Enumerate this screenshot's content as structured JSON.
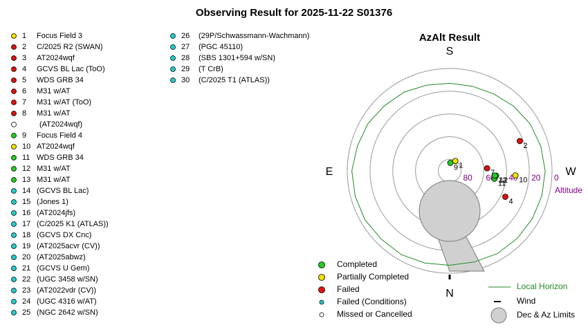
{
  "title": "Observing Result for 2025-11-22 S01376",
  "targets": [
    {
      "number": "1",
      "name": "Focus Field 3",
      "color": "#f0e000"
    },
    {
      "number": "2",
      "name": "C/2025 R2 (SWAN)",
      "color": "#dd1111"
    },
    {
      "number": "3",
      "name": "AT2024wqf",
      "color": "#dd1111"
    },
    {
      "number": "4",
      "name": "GCVS BL Lac (ToO)",
      "color": "#dd1111"
    },
    {
      "number": "5",
      "name": "WDS GRB 34",
      "color": "#dd1111"
    },
    {
      "number": "6",
      "name": "M31 w/AT",
      "color": "#dd1111"
    },
    {
      "number": "7",
      "name": "M31 w/AT (ToO)",
      "color": "#dd1111"
    },
    {
      "number": "8",
      "name": "M31 w/AT",
      "color": "#dd1111"
    },
    {
      "number": null,
      "name": "(AT2024wqf)",
      "color": "#ffffff"
    },
    {
      "number": "9",
      "name": "Focus Field 4",
      "color": "#22cc22"
    },
    {
      "number": "10",
      "name": "AT2024wqf",
      "color": "#f0e000"
    },
    {
      "number": "11",
      "name": "WDS GRB 34",
      "color": "#22cc22"
    },
    {
      "number": "12",
      "name": "M31 w/AT",
      "color": "#22cc22"
    },
    {
      "number": "13",
      "name": "M31 w/AT",
      "color": "#22cc22"
    },
    {
      "number": "14",
      "name": "(GCVS BL Lac)",
      "color": "#22cccc"
    },
    {
      "number": "15",
      "name": "(Jones 1)",
      "color": "#22cccc"
    },
    {
      "number": "16",
      "name": "(AT2024jfs)",
      "color": "#22cccc"
    },
    {
      "number": "17",
      "name": "(C/2025 K1 (ATLAS))",
      "color": "#22cccc"
    },
    {
      "number": "18",
      "name": "(GCVS DX Cnc)",
      "color": "#22cccc"
    },
    {
      "number": "19",
      "name": "(AT2025acvr (CV))",
      "color": "#22cccc"
    },
    {
      "number": "20",
      "name": "(AT2025abwz)",
      "color": "#22cccc"
    },
    {
      "number": "21",
      "name": "(GCVS U Gem)",
      "color": "#22cccc"
    },
    {
      "number": "22",
      "name": "(UGC 3458 w/SN)",
      "color": "#22cccc"
    },
    {
      "number": "23",
      "name": "(AT2022vdr (CV))",
      "color": "#22cccc"
    },
    {
      "number": "24",
      "name": "(UGC 4316 w/AT)",
      "color": "#22cccc"
    },
    {
      "number": "25",
      "name": "(NGC 2642 w/SN)",
      "color": "#22cccc"
    },
    {
      "number": "26",
      "name": "(29P/Schwassmann-Wachmann)",
      "color": "#22cccc"
    },
    {
      "number": "27",
      "name": "(PGC 45110)",
      "color": "#22cccc"
    },
    {
      "number": "28",
      "name": "(SBS 1301+594 w/SN)",
      "color": "#22cccc"
    },
    {
      "number": "29",
      "name": "(T CrB)",
      "color": "#22cccc"
    },
    {
      "number": "30",
      "name": "(C/2025 T1 (ATLAS))",
      "color": "#22cccc"
    }
  ],
  "chart_data": {
    "type": "polar",
    "title": "AzAlt Result",
    "compass": {
      "S": "S",
      "N": "N",
      "E": "E",
      "W": "W"
    },
    "radial_label": "Altitude",
    "rlim": [
      90,
      0
    ],
    "rticks": [
      80,
      60,
      40,
      20,
      0
    ],
    "points": [
      {
        "label": "2",
        "az": 247,
        "alt": 23,
        "color": "#dd1111"
      },
      {
        "label": "4",
        "az": 295,
        "alt": 36,
        "color": "#dd1111"
      },
      {
        "label": "7",
        "az": 266,
        "alt": 57,
        "color": "#dd1111"
      },
      {
        "label": "9",
        "az": 185,
        "alt": 83,
        "color": "#22cc22"
      },
      {
        "label": "1",
        "az": 210,
        "alt": 80,
        "color": "#f0e000"
      },
      {
        "label": "10",
        "az": 274,
        "alt": 32,
        "color": "#f0e000"
      },
      {
        "label": "11",
        "az": 280,
        "alt": 50,
        "color": "#22cc22"
      },
      {
        "label": "12",
        "az": 276,
        "alt": 49,
        "color": "#22cc22"
      },
      {
        "label": "13",
        "az": 276,
        "alt": 50,
        "color": "#22cc22"
      }
    ],
    "horizon": {
      "name": "Local Horizon",
      "color": "#228822",
      "az": [
        0,
        15,
        30,
        45,
        60,
        75,
        90,
        105,
        120,
        135,
        150,
        165,
        180,
        195,
        210,
        225,
        240,
        255,
        270,
        285,
        300,
        315,
        330,
        345
      ],
      "alt": [
        7,
        6,
        5,
        5,
        4,
        4,
        4,
        6,
        7,
        9,
        10,
        12,
        13,
        13,
        12,
        10,
        8,
        7,
        6,
        6,
        6,
        6,
        6,
        7
      ]
    },
    "legend": [
      {
        "name": "Completed",
        "color": "#22cc22"
      },
      {
        "name": "Partially Completed",
        "color": "#f0e000"
      },
      {
        "name": "Failed",
        "color": "#dd1111"
      },
      {
        "name": "Failed (Conditions)",
        "color": "#22cccc"
      },
      {
        "name": "Missed or Cancelled",
        "color": "#ffffff"
      }
    ],
    "wind_label": "Wind",
    "limits_label": "Dec & Az Limits"
  }
}
